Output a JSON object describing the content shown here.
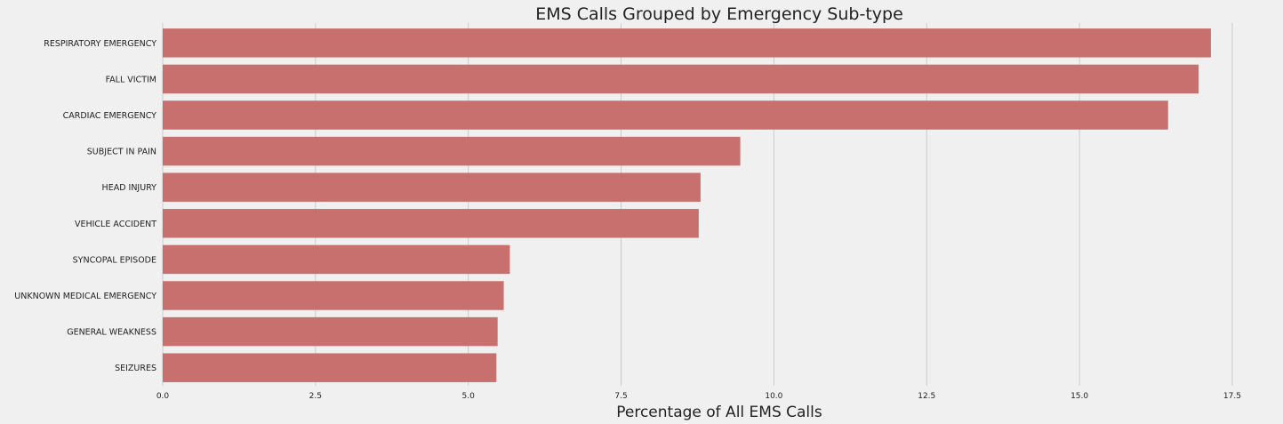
{
  "chart_data": {
    "type": "bar",
    "orientation": "horizontal",
    "title": "EMS Calls Grouped by Emergency Sub-type",
    "xlabel": "Percentage of All EMS Calls",
    "ylabel": "",
    "xlim": [
      0,
      17.85
    ],
    "xticks": [
      0,
      2.5,
      5,
      7.5,
      10,
      12.5,
      15,
      17.5
    ],
    "xtick_labels": [
      "0.0",
      "2.5",
      "5.0",
      "7.5",
      "10.0",
      "12.5",
      "15.0",
      "17.5"
    ],
    "grid": "vertical",
    "bar_color": "#c8706d",
    "background_color": "#f0f0f0",
    "categories": [
      "RESPIRATORY EMERGENCY",
      "FALL VICTIM",
      "CARDIAC EMERGENCY",
      "SUBJECT IN PAIN",
      "HEAD INJURY",
      "VEHICLE ACCIDENT",
      "SYNCOPAL EPISODE",
      "UNKNOWN MEDICAL EMERGENCY",
      "GENERAL WEAKNESS",
      "SEIZURES"
    ],
    "values": [
      17.15,
      16.95,
      16.45,
      9.45,
      8.8,
      8.77,
      5.68,
      5.58,
      5.48,
      5.46
    ]
  }
}
